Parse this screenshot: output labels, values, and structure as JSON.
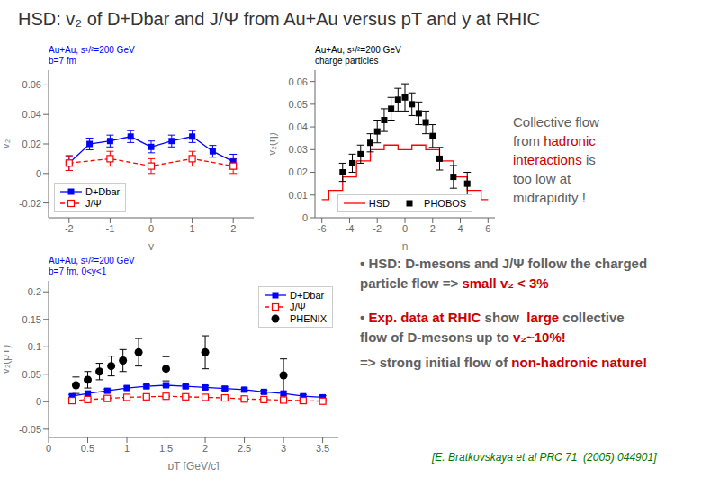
{
  "title": "HSD: v₂ of D+Dbar and J/Ψ from Au+Au versus pT and y at RHIC",
  "annotations": [
    {
      "lines": [
        [
          {
            "text": "Collective flow",
            "color": "#606060"
          }
        ],
        [
          {
            "text": "from ",
            "color": "#606060"
          },
          {
            "text": "hadronic",
            "color": "#cc0000"
          }
        ],
        [
          {
            "text": "interactions",
            "color": "#cc0000"
          },
          {
            "text": " is",
            "color": "#606060"
          }
        ],
        [
          {
            "text": "too low at",
            "color": "#606060"
          }
        ],
        [
          {
            "text": "midrapidity !",
            "color": "#606060"
          }
        ]
      ]
    },
    {
      "lines": [
        [
          {
            "text": "• HSD: D-mesons and J/Ψ follow the charged",
            "color": "#606060"
          }
        ],
        [
          {
            "text": "particle flow => ",
            "color": "#606060"
          },
          {
            "text": "small v₂ < 3%",
            "color": "#cc0000"
          }
        ]
      ]
    },
    {
      "lines": [
        [
          {
            "text": "• ",
            "color": "#606060"
          },
          {
            "text": "Exp. data at RHIC",
            "color": "#cc0000"
          },
          {
            "text": " show  ",
            "color": "#606060"
          },
          {
            "text": "large",
            "color": "#cc0000"
          },
          {
            "text": " collective",
            "color": "#606060"
          }
        ],
        [
          {
            "text": "flow of D-mesons up to ",
            "color": "#606060"
          },
          {
            "text": "v₂~10%!",
            "color": "#cc0000"
          }
        ]
      ]
    },
    {
      "lines": [
        [
          {
            "text": "=> strong initial flow of ",
            "color": "#606060"
          },
          {
            "text": "non-hadronic nature!",
            "color": "#cc0000"
          }
        ]
      ]
    },
    {
      "lines": [
        [
          {
            "text": "[E. Bratkovskaya et al PRC 71  (2005) 044901]",
            "color": "#007700"
          }
        ]
      ]
    }
  ],
  "chart_data": [
    {
      "type": "line",
      "x_label": "y",
      "y_label": "v₂",
      "xlim": [
        -2.5,
        2.5
      ],
      "xticks": [
        -2,
        -1,
        0,
        1,
        2
      ],
      "ylim": [
        -0.03,
        0.07
      ],
      "yticks": [
        -0.02,
        0,
        0.02,
        0.04,
        0.06
      ],
      "grid": false,
      "legend": "lower left",
      "annotations": [
        {
          "lines": [
            "Au+Au, s¹/²=200 GeV",
            "b=7 fm"
          ],
          "color": "blue"
        }
      ],
      "series": [
        {
          "name": "D+Dbar",
          "type": "line",
          "color": "blue",
          "marker": "square",
          "line_style": "solid",
          "x": [
            -2,
            -1.5,
            -1,
            -0.5,
            0,
            0.5,
            1,
            1.5,
            2
          ],
          "values": [
            0.007,
            0.02,
            0.022,
            0.025,
            0.018,
            0.022,
            0.025,
            0.015,
            0.008
          ],
          "errors": [
            0.005,
            0.004,
            0.004,
            0.004,
            0.004,
            0.004,
            0.004,
            0.004,
            0.005
          ]
        },
        {
          "name": "J/Ψ",
          "type": "line",
          "color": "red",
          "marker": "square_open",
          "line_style": "dashed",
          "x": [
            -2,
            -1,
            0,
            1,
            2
          ],
          "values": [
            0.007,
            0.01,
            0.005,
            0.01,
            0.005
          ],
          "errors": [
            0.005,
            0.005,
            0.005,
            0.005,
            0.005
          ]
        }
      ]
    },
    {
      "type": "line",
      "x_label": "η",
      "y_label": "v₂(η)",
      "xlim": [
        -6.5,
        6.5
      ],
      "xticks": [
        -6,
        -4,
        -2,
        0,
        2,
        4,
        6
      ],
      "ylim": [
        0.0,
        0.065
      ],
      "yticks": [
        0,
        0.01,
        0.02,
        0.03,
        0.04,
        0.05,
        0.06
      ],
      "grid": false,
      "legend": "lower center",
      "annotations": [
        {
          "lines": [
            "Au+Au, s¹/²=200 GeV",
            "charge particles"
          ],
          "color": "black"
        }
      ],
      "series": [
        {
          "name": "HSD",
          "type": "step",
          "color": "red",
          "line_style": "solid",
          "x": [
            -6,
            -5,
            -4,
            -3,
            -2,
            -1,
            0,
            1,
            2,
            3,
            4,
            5,
            6
          ],
          "values": [
            0.008,
            0.012,
            0.018,
            0.025,
            0.03,
            0.032,
            0.03,
            0.032,
            0.03,
            0.025,
            0.018,
            0.012,
            0.008
          ]
        },
        {
          "name": "PHOBOS",
          "type": "scatter",
          "color": "black",
          "marker": "square",
          "x": [
            -4.5,
            -3.8,
            -3.2,
            -2.5,
            -2.0,
            -1.5,
            -1.0,
            -0.5,
            0.0,
            0.5,
            1.0,
            1.5,
            2.0,
            2.5,
            3.5,
            4.5
          ],
          "values": [
            0.02,
            0.024,
            0.028,
            0.033,
            0.038,
            0.043,
            0.048,
            0.052,
            0.053,
            0.05,
            0.046,
            0.042,
            0.036,
            0.026,
            0.018,
            0.015
          ],
          "errors": [
            0.004,
            0.004,
            0.004,
            0.004,
            0.005,
            0.005,
            0.005,
            0.005,
            0.006,
            0.005,
            0.005,
            0.005,
            0.005,
            0.005,
            0.005,
            0.005
          ]
        }
      ]
    },
    {
      "type": "line",
      "x_label": "pT [GeV/c]",
      "y_label": "v₂(pT)",
      "xlim": [
        0.0,
        3.7
      ],
      "xticks": [
        0,
        0.5,
        1,
        1.5,
        2,
        2.5,
        3,
        3.5
      ],
      "ylim": [
        -0.065,
        0.22
      ],
      "yticks": [
        -0.05,
        0,
        0.05,
        0.1,
        0.15,
        0.2
      ],
      "grid": false,
      "legend": "upper right",
      "annotations": [
        {
          "lines": [
            "Au+Au, s¹/²=200 GeV",
            "b=7 fm, 0<y<1"
          ],
          "color": "blue"
        }
      ],
      "series": [
        {
          "name": "D+Dbar",
          "type": "line",
          "color": "blue",
          "marker": "square",
          "line_style": "solid",
          "x": [
            0.3,
            0.5,
            0.75,
            1.0,
            1.25,
            1.5,
            1.75,
            2.0,
            2.25,
            2.5,
            2.75,
            3.0,
            3.25,
            3.5
          ],
          "values": [
            0.01,
            0.015,
            0.02,
            0.025,
            0.028,
            0.03,
            0.028,
            0.026,
            0.024,
            0.022,
            0.018,
            0.015,
            0.01,
            0.008
          ],
          "errors": [
            0.003,
            0.003,
            0.003,
            0.003,
            0.003,
            0.003,
            0.003,
            0.003,
            0.003,
            0.003,
            0.003,
            0.003,
            0.003,
            0.003
          ]
        },
        {
          "name": "J/Ψ",
          "type": "line",
          "color": "red",
          "marker": "square_open",
          "line_style": "dashed",
          "x": [
            0.3,
            0.5,
            0.75,
            1.0,
            1.25,
            1.5,
            1.75,
            2.0,
            2.25,
            2.5,
            2.75,
            3.0,
            3.25,
            3.5
          ],
          "values": [
            0.002,
            0.004,
            0.006,
            0.008,
            0.009,
            0.01,
            0.009,
            0.008,
            0.007,
            0.005,
            0.004,
            0.003,
            0.002,
            0.001
          ],
          "errors": [
            0.002,
            0.002,
            0.002,
            0.002,
            0.002,
            0.002,
            0.002,
            0.002,
            0.002,
            0.002,
            0.002,
            0.002,
            0.002,
            0.002
          ]
        },
        {
          "name": "PHENIX",
          "type": "scatter",
          "color": "black",
          "marker": "circle",
          "x": [
            0.35,
            0.5,
            0.65,
            0.8,
            0.95,
            1.15,
            1.5,
            2.0,
            3.0
          ],
          "values": [
            0.03,
            0.04,
            0.055,
            0.065,
            0.075,
            0.09,
            0.06,
            0.09,
            0.048
          ],
          "errors": [
            0.015,
            0.015,
            0.015,
            0.018,
            0.02,
            0.025,
            0.022,
            0.03,
            0.03
          ]
        }
      ]
    }
  ]
}
